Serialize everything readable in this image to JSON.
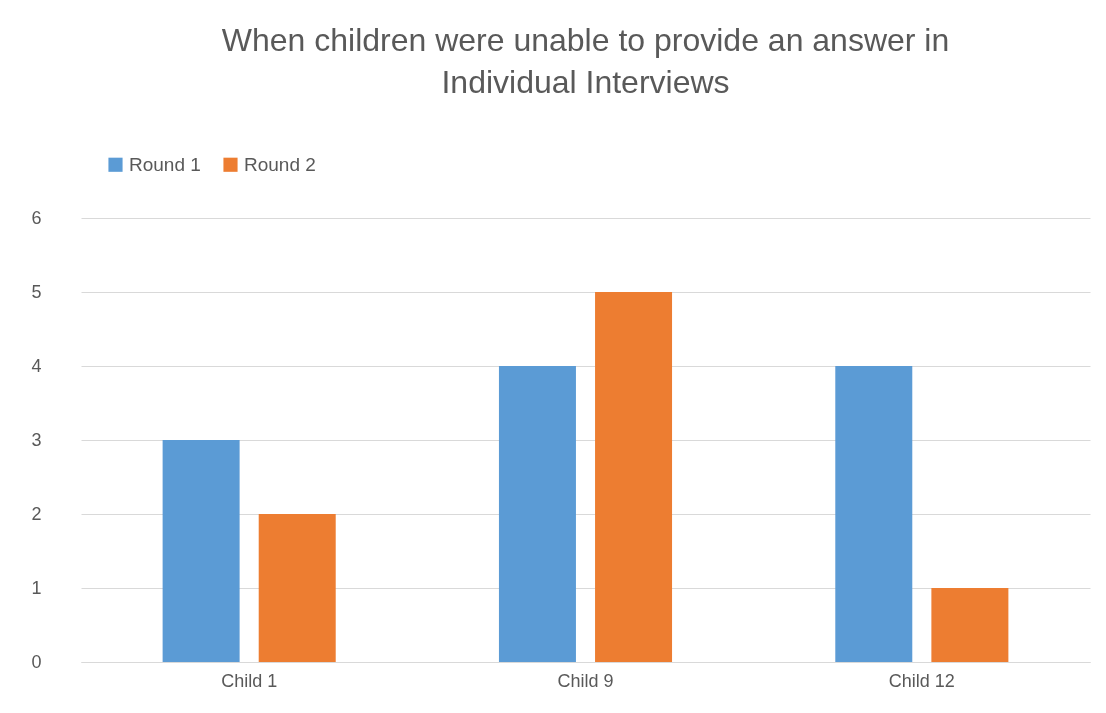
{
  "chart_data": {
    "type": "bar",
    "title": "When children were unable to provide an answer in Individual Interviews",
    "categories": [
      "Child 1",
      "Child 9",
      "Child 12"
    ],
    "series": [
      {
        "name": "Round 1",
        "color": "#5b9bd5",
        "values": [
          3,
          4,
          4
        ]
      },
      {
        "name": "Round 2",
        "color": "#ed7d31",
        "values": [
          2,
          5,
          1
        ]
      }
    ],
    "ylim": [
      0,
      6
    ],
    "yticks": [
      0,
      1,
      2,
      3,
      4,
      5,
      6
    ],
    "grid": "y",
    "legend": "top"
  }
}
